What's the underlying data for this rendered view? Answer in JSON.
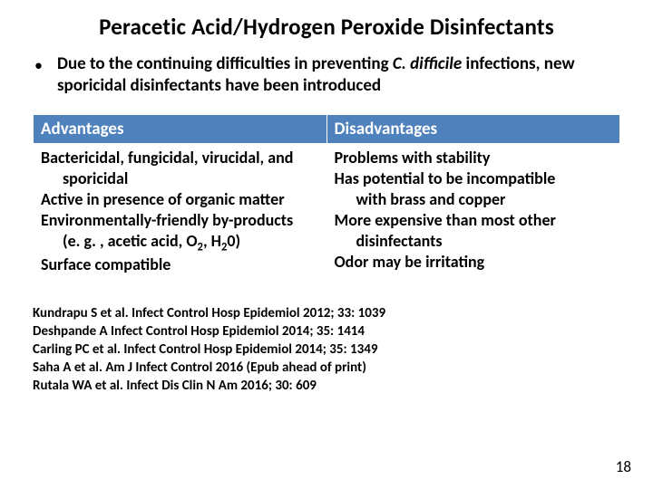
{
  "title": "Peracetic Acid/Hydrogen Peroxide Disinfectants",
  "bullet": {
    "pre": "Due to the continuing difficulties in preventing ",
    "italic": "C. difficile",
    "post": " infections, new sporicidal disinfectants have been introduced"
  },
  "table": {
    "header_bg": "#4f81bd",
    "header_color": "#ffffff",
    "headers": {
      "left": "Advantages",
      "right": "Disadvantages"
    },
    "adv": {
      "l1": "Bactericidal, fungicidal, virucidal, and",
      "l2": "sporicidal",
      "l3": "Active in presence of organic matter",
      "l4": "Environmentally-friendly by-products",
      "l5_pre": "(e. g. , acetic acid, O",
      "l5_sub1": "2",
      "l5_mid": ", H",
      "l5_sub2": "2",
      "l5_post": "0)",
      "l6": "Surface compatible"
    },
    "dis": {
      "l1": "Problems with stability",
      "l2": "Has potential to be incompatible",
      "l3": "with brass and copper",
      "l4": "More expensive than most other",
      "l5": "disinfectants",
      "l6": "Odor may be irritating"
    }
  },
  "refs": {
    "r1": "Kundrapu S et al. Infect Control Hosp Epidemiol 2012; 33: 1039",
    "r2": "Deshpande A Infect Control Hosp Epidemiol 2014; 35: 1414",
    "r3": "Carling PC et al.  Infect Control Hosp Epidemiol 2014; 35: 1349",
    "r4": "Saha A et al.  Am J Infect Control 2016 (Epub ahead of print)",
    "r5": "Rutala WA et al.  Infect Dis Clin N Am 2016; 30: 609"
  },
  "page_number": "18"
}
